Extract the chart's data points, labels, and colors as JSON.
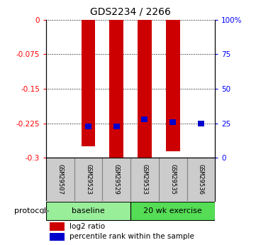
{
  "title": "GDS2234 / 2266",
  "samples": [
    "GSM29507",
    "GSM29523",
    "GSM29529",
    "GSM29533",
    "GSM29535",
    "GSM29536"
  ],
  "log2_ratio": [
    -0.001,
    -0.275,
    -0.305,
    -0.305,
    -0.285,
    0.0
  ],
  "percentile_rank": [
    0.0,
    23.0,
    23.0,
    28.0,
    26.0,
    25.0
  ],
  "groups": [
    {
      "label": "baseline",
      "indices": [
        0,
        1,
        2
      ],
      "color": "#99ee99"
    },
    {
      "label": "20 wk exercise",
      "indices": [
        3,
        4,
        5
      ],
      "color": "#55dd55"
    }
  ],
  "ylim_left": [
    -0.3,
    0.0
  ],
  "ylim_right": [
    0,
    100
  ],
  "yticks_left": [
    0.0,
    -0.075,
    -0.15,
    -0.225,
    -0.3
  ],
  "ytick_labels_left": [
    "0",
    "-0.075",
    "-0.15",
    "-0.225",
    "-0.3"
  ],
  "yticks_right": [
    0,
    25,
    50,
    75,
    100
  ],
  "ytick_labels_right": [
    "0",
    "25",
    "50",
    "75",
    "100%"
  ],
  "bar_color_red": "#cc0000",
  "bar_color_blue": "#0000cc",
  "bar_width": 0.5,
  "protocol_label": "protocol",
  "legend_red": "log2 ratio",
  "legend_blue": "percentile rank within the sample",
  "background_color": "#ffffff",
  "sample_box_color": "#cccccc",
  "figsize": [
    3.61,
    3.45
  ],
  "dpi": 100
}
